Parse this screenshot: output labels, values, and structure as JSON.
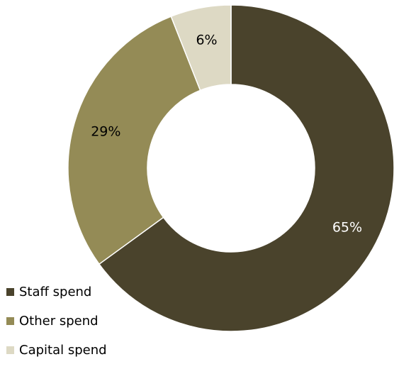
{
  "chart_data": {
    "type": "pie",
    "donut": true,
    "title": "",
    "categories": [
      "Staff spend",
      "Other spend",
      "Capital spend"
    ],
    "values": [
      65,
      29,
      6
    ],
    "value_labels": [
      "65%",
      "29%",
      "6%"
    ],
    "unit": "%",
    "legend_position": "bottom-left",
    "colors": {
      "Staff spend": "#4a432c",
      "Other spend": "#948b56",
      "Capital spend": "#ddd9c4"
    },
    "label_colors": {
      "Staff spend": "#ffffff",
      "Other spend": "#000000",
      "Capital spend": "#000000"
    }
  }
}
